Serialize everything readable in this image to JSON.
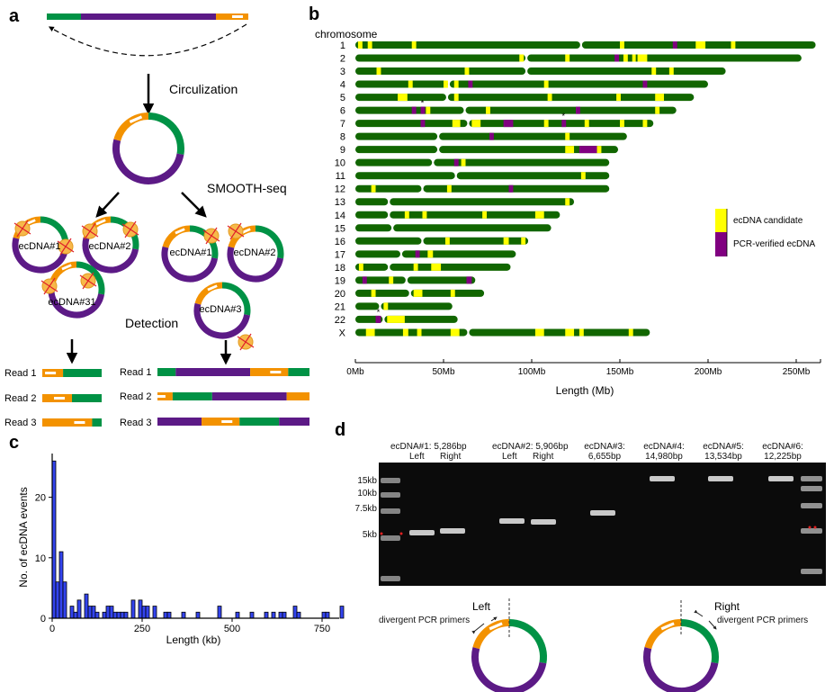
{
  "colors": {
    "green": "#009245",
    "purple": "#5c1a86",
    "orange": "#f39200",
    "chr_green": "#116600",
    "candidate": "#ffff00",
    "verified": "#800080",
    "hist_bar": "#3344ee"
  },
  "panel_a": {
    "label": "a",
    "circulization": "Circulization",
    "smooth_seq": "SMOOTH-seq",
    "detection": "Detection",
    "left_circles": [
      "ecDNA#1",
      "ecDNA#2",
      "ecDNA#31"
    ],
    "right_circles": [
      "ecDNA#1",
      "ecDNA#2",
      "ecDNA#3"
    ],
    "reads_left": [
      {
        "label": "Read 1",
        "segments": [
          [
            "orange",
            0.35
          ],
          [
            "green",
            0.65
          ]
        ]
      },
      {
        "label": "Read 2",
        "segments": [
          [
            "orange",
            0.5
          ],
          [
            "green",
            0.5
          ]
        ]
      },
      {
        "label": "Read 3",
        "segments": [
          [
            "orange",
            0.84
          ],
          [
            "green",
            0.16
          ]
        ]
      }
    ],
    "reads_right": [
      {
        "label": "Read 1",
        "segments": [
          [
            "green",
            0.12
          ],
          [
            "purple",
            0.49
          ],
          [
            "orange",
            0.25
          ],
          [
            "green",
            0.14
          ]
        ]
      },
      {
        "label": "Read 2",
        "segments": [
          [
            "orange",
            0.1
          ],
          [
            "green",
            0.26
          ],
          [
            "purple",
            0.49
          ],
          [
            "orange",
            0.15
          ]
        ]
      },
      {
        "label": "Read 3",
        "segments": [
          [
            "purple",
            0.29
          ],
          [
            "orange",
            0.25
          ],
          [
            "green",
            0.26
          ],
          [
            "purple",
            0.2
          ]
        ]
      }
    ]
  },
  "chart_data": [
    {
      "panel": "b",
      "type": "ideogram",
      "ylabel": "chromosome",
      "xlabel": "Length (Mb)",
      "xlim": [
        0,
        264
      ],
      "xticks": [
        "0Mb",
        "50Mb",
        "100Mb",
        "150Mb",
        "200Mb",
        "250Mb"
      ],
      "xtick_values": [
        0,
        50,
        100,
        150,
        200,
        250
      ],
      "legend": [
        {
          "label": "ecDNA candidate",
          "color": "#ffff00"
        },
        {
          "label": "PCR-verified ecDNA",
          "color": "#800080"
        }
      ],
      "legend_position": "right",
      "chromosomes": [
        {
          "name": "1",
          "length": 261,
          "centromere": 128,
          "candidates": [
            [
              1.5,
              2.5
            ],
            [
              7,
              2.5
            ],
            [
              32,
              2.5
            ],
            [
              150,
              2.5
            ],
            [
              193,
              5.5
            ],
            [
              213,
              2.5
            ]
          ],
          "verified": [
            [
              180,
              2.5
            ]
          ],
          "starred": []
        },
        {
          "name": "2",
          "length": 253,
          "centromere": 97,
          "candidates": [
            [
              93,
              2.5
            ],
            [
              119,
              2.5
            ],
            [
              152,
              2.5
            ],
            [
              157,
              2
            ],
            [
              160,
              5.5
            ]
          ],
          "verified": [
            [
              147,
              2.5
            ]
          ],
          "starred": []
        },
        {
          "name": "3",
          "length": 210,
          "centromere": 97,
          "candidates": [
            [
              12,
              2.5
            ],
            [
              62,
              2.5
            ],
            [
              168,
              2.5
            ],
            [
              178,
              2.5
            ]
          ],
          "verified": [],
          "starred": []
        },
        {
          "name": "4",
          "length": 200,
          "centromere": 53,
          "candidates": [
            [
              30,
              2.5
            ],
            [
              50,
              2.5
            ],
            [
              56,
              2.5
            ],
            [
              107,
              2.5
            ]
          ],
          "verified": [
            [
              64,
              2.5
            ],
            [
              163,
              2.5
            ]
          ],
          "starred": []
        },
        {
          "name": "5",
          "length": 192,
          "centromere": 52,
          "candidates": [
            [
              24,
              5.5
            ],
            [
              56,
              2.5
            ],
            [
              109,
              2.5
            ],
            [
              148,
              2.5
            ],
            [
              170,
              5
            ]
          ],
          "verified": [],
          "starred": []
        },
        {
          "name": "6",
          "length": 182,
          "centromere": 62,
          "candidates": [
            [
              40,
              2.5
            ],
            [
              74,
              2.5
            ],
            [
              170,
              2.5
            ]
          ],
          "verified": [
            [
              32,
              2.5
            ],
            [
              37,
              2.5
            ],
            [
              125,
              2.5
            ]
          ],
          "starred": [
            38
          ]
        },
        {
          "name": "7",
          "length": 169,
          "centromere": 64,
          "candidates": [
            [
              55,
              4.5
            ],
            [
              66,
              5
            ],
            [
              107,
              2.5
            ],
            [
              130,
              2.5
            ],
            [
              150,
              2.5
            ],
            [
              163,
              2.5
            ]
          ],
          "verified": [
            [
              37,
              2.5
            ],
            [
              84,
              5.5
            ],
            [
              117,
              2.5
            ]
          ],
          "starred": [
            118
          ]
        },
        {
          "name": "8",
          "length": 154,
          "centromere": 47,
          "candidates": [
            [
              119,
              2.5
            ]
          ],
          "verified": [
            [
              76,
              2.5
            ]
          ],
          "starred": []
        },
        {
          "name": "9",
          "length": 149,
          "centromere": 47,
          "candidates": [
            [
              119,
              5
            ],
            [
              137,
              2.5
            ]
          ],
          "verified": [
            [
              127,
              10
            ]
          ],
          "starred": []
        },
        {
          "name": "10",
          "length": 144,
          "centromere": 44,
          "candidates": [
            [
              60,
              2.5
            ]
          ],
          "verified": [
            [
              56,
              2.5
            ]
          ],
          "starred": []
        },
        {
          "name": "11",
          "length": 144,
          "centromere": 57,
          "candidates": [
            [
              128,
              2.5
            ]
          ],
          "verified": [],
          "starred": []
        },
        {
          "name": "12",
          "length": 144,
          "centromere": 38,
          "candidates": [
            [
              9,
              2.5
            ],
            [
              52,
              2.5
            ]
          ],
          "verified": [
            [
              87,
              2.5
            ]
          ],
          "starred": []
        },
        {
          "name": "13",
          "length": 124,
          "centromere": 19,
          "candidates": [
            [
              119,
              2.5
            ]
          ],
          "verified": [],
          "starred": []
        },
        {
          "name": "14",
          "length": 116,
          "centromere": 19,
          "candidates": [
            [
              28,
              2.5
            ],
            [
              38,
              2.5
            ],
            [
              72,
              2.5
            ],
            [
              102,
              5
            ]
          ],
          "verified": [],
          "starred": []
        },
        {
          "name": "15",
          "length": 111,
          "centromere": 21,
          "candidates": [],
          "verified": [],
          "starred": []
        },
        {
          "name": "16",
          "length": 98,
          "centromere": 38,
          "candidates": [
            [
              51,
              2.5
            ],
            [
              84,
              3
            ],
            [
              94,
              2.5
            ]
          ],
          "verified": [],
          "starred": []
        },
        {
          "name": "17",
          "length": 91,
          "centromere": 26,
          "candidates": [
            [
              41,
              3
            ]
          ],
          "verified": [
            [
              34,
              2.5
            ]
          ],
          "starred": []
        },
        {
          "name": "18",
          "length": 88,
          "centromere": 19,
          "candidates": [
            [
              2,
              2.5
            ],
            [
              33,
              2.5
            ],
            [
              43,
              5.5
            ]
          ],
          "verified": [],
          "starred": []
        },
        {
          "name": "19",
          "length": 68,
          "centromere": 29,
          "candidates": [
            [
              19,
              2.5
            ]
          ],
          "verified": [
            [
              4,
              2.5
            ],
            [
              63,
              3
            ]
          ],
          "starred": []
        },
        {
          "name": "20",
          "length": 73,
          "centromere": 31,
          "candidates": [
            [
              9,
              2.5
            ],
            [
              33,
              5
            ],
            [
              54,
              2.5
            ]
          ],
          "verified": [],
          "starred": []
        },
        {
          "name": "21",
          "length": 55,
          "centromere": 14,
          "candidates": [
            [
              16,
              2.5
            ]
          ],
          "verified": [],
          "starred": []
        },
        {
          "name": "22",
          "length": 58,
          "centromere": 16,
          "candidates": [
            [
              18,
              10
            ]
          ],
          "verified": [
            [
              11.5,
              3
            ]
          ],
          "starred": [
            13
          ]
        },
        {
          "name": "X",
          "length": 167,
          "centromere": 64,
          "candidates": [
            [
              6,
              5
            ],
            [
              27,
              3
            ],
            [
              35,
              2.5
            ],
            [
              54,
              5
            ],
            [
              102,
              5
            ],
            [
              119,
              5
            ],
            [
              127,
              2.5
            ],
            [
              155,
              2.5
            ]
          ],
          "verified": [],
          "starred": []
        }
      ]
    },
    {
      "panel": "c",
      "type": "bar",
      "xlabel": "Length (kb)",
      "ylabel": "No. of ecDNA events",
      "xlim": [
        0,
        830
      ],
      "ylim": [
        0,
        27
      ],
      "xticks": [
        0,
        250,
        500,
        750
      ],
      "yticks": [
        0,
        10,
        20
      ],
      "bin_width": 10,
      "bins": [
        0,
        10,
        20,
        30,
        50,
        60,
        70,
        90,
        100,
        110,
        120,
        140,
        150,
        160,
        170,
        180,
        190,
        200,
        220,
        240,
        250,
        260,
        280,
        310,
        320,
        360,
        400,
        460,
        510,
        550,
        590,
        610,
        630,
        640,
        670,
        680,
        750,
        760,
        800
      ],
      "values": [
        26,
        6,
        11,
        6,
        2,
        1,
        3,
        4,
        2,
        2,
        1,
        1,
        2,
        2,
        1,
        1,
        1,
        1,
        3,
        3,
        2,
        2,
        2,
        1,
        1,
        1,
        1,
        2,
        1,
        1,
        1,
        1,
        1,
        1,
        2,
        1,
        1,
        1,
        2
      ]
    }
  ],
  "panel_labels": {
    "b": "b",
    "c": "c",
    "d": "d"
  },
  "panel_d": {
    "kb_labels": [
      "15kb",
      "10kb",
      "7.5kb",
      "5kb"
    ],
    "headers": [
      {
        "line1": "ecDNA#1: 5,286bp",
        "line2a": "Left",
        "line2b": "Right"
      },
      {
        "line1": "ecDNA#2: 5,906bp",
        "line2a": "Left",
        "line2b": "Right"
      },
      {
        "line1": "ecDNA#3:",
        "line2": "6,655bp"
      },
      {
        "line1": "ecDNA#4:",
        "line2": "14,980bp"
      },
      {
        "line1": "ecDNA#5:",
        "line2": "13,534bp"
      },
      {
        "line1": "ecDNA#6:",
        "line2": "12,225bp"
      }
    ],
    "left_diagram": {
      "title": "Left",
      "caption": "divergent PCR primers"
    },
    "right_diagram": {
      "title": "Right",
      "caption": "divergent PCR primers"
    }
  }
}
